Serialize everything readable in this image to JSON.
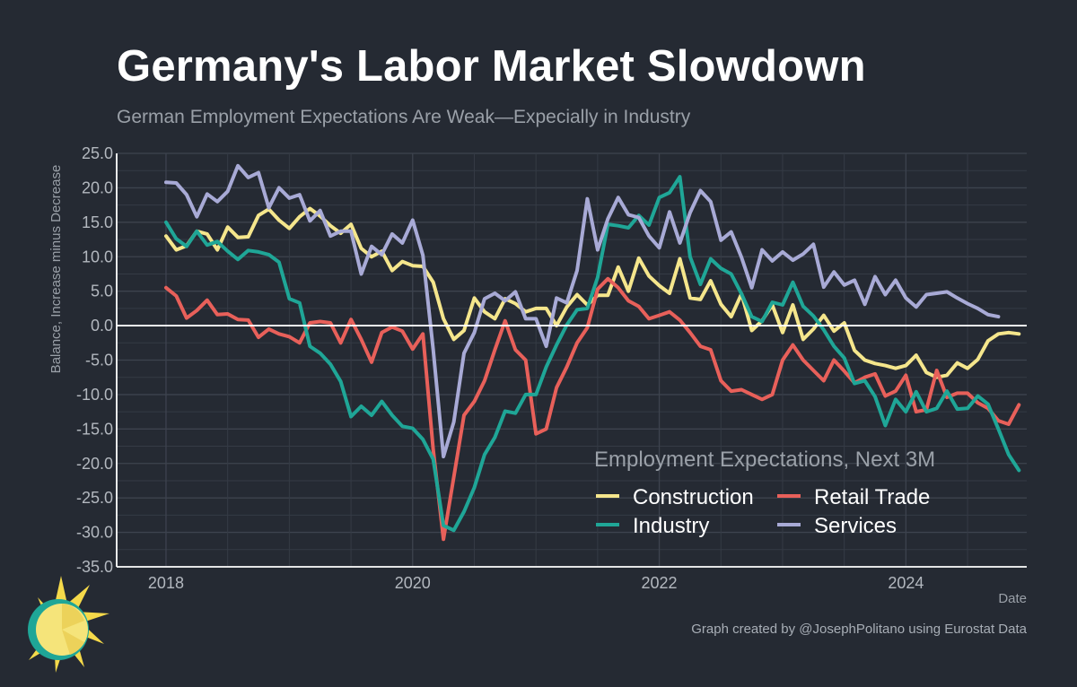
{
  "title": "Germany's Labor Market Slowdown",
  "subtitle": "German Employment Expectations Are Weak—Expecially in Industry",
  "credit": "Graph created by @JosephPolitano using Eurostat Data",
  "logo": "sun-logo-icon",
  "chart_data": {
    "type": "line",
    "title": "Germany's Labor Market Slowdown",
    "subtitle": "German Employment Expectations Are Weak—Expecially in Industry",
    "xlabel": "Date",
    "ylabel": "Balance, Increase minus Decrease",
    "xlim": [
      2017.6,
      2024.98
    ],
    "ylim": [
      -35,
      25
    ],
    "y_ticks": [
      25.0,
      20.0,
      15.0,
      10.0,
      5.0,
      0.0,
      -5.0,
      -10.0,
      -15.0,
      -20.0,
      -25.0,
      -30.0,
      -35.0
    ],
    "y_tick_labels": [
      "25.0",
      "20.0",
      "15.0",
      "10.0",
      "5.0",
      "0.0",
      "-5.0",
      "-10.0",
      "-15.0",
      "-20.0",
      "-25.0",
      "-30.0",
      "-35.0"
    ],
    "x_ticks": [
      2018,
      2020,
      2022,
      2024
    ],
    "x_tick_labels": [
      "2018",
      "2020",
      "2022",
      "2024"
    ],
    "zero_line": true,
    "grid": true,
    "legend": {
      "title": "Employment Expectations, Next 3M",
      "position": "bottom-right",
      "entries": [
        "Construction",
        "Retail Trade",
        "Industry",
        "Services"
      ]
    },
    "x_start": 2018.0,
    "x_step_months": 1,
    "series": [
      {
        "name": "Construction",
        "color": "#f5e68c",
        "values": [
          13.0,
          11.0,
          11.6,
          13.7,
          13.3,
          11.0,
          14.3,
          12.8,
          12.9,
          16.0,
          16.9,
          15.3,
          14.1,
          15.8,
          17.0,
          15.9,
          14.5,
          13.4,
          14.7,
          11.2,
          10.0,
          10.8,
          8.0,
          9.3,
          8.7,
          8.6,
          6.3,
          1.0,
          -2.0,
          -0.7,
          4.0,
          2.0,
          1.0,
          3.9,
          3.2,
          2.0,
          2.5,
          2.5,
          0.0,
          2.7,
          4.5,
          3.0,
          4.4,
          4.4,
          8.5,
          5.0,
          9.8,
          7.2,
          5.8,
          4.7,
          9.7,
          4.0,
          3.8,
          6.5,
          3.1,
          1.3,
          4.6,
          -0.7,
          0.7,
          3.0,
          -1.0,
          3.0,
          -2.0,
          -0.5,
          1.5,
          -0.8,
          0.4,
          -3.6,
          -5.0,
          -5.5,
          -5.8,
          -6.2,
          -5.8,
          -4.3,
          -6.8,
          -7.5,
          -7.2,
          -5.4,
          -6.2,
          -4.9,
          -2.2,
          -1.2,
          -1.0,
          -1.2
        ]
      },
      {
        "name": "Retail Trade",
        "color": "#e8605a",
        "values": [
          5.5,
          4.3,
          1.1,
          2.2,
          3.7,
          1.6,
          1.7,
          0.9,
          0.8,
          -1.7,
          -0.5,
          -1.2,
          -1.6,
          -2.5,
          0.4,
          0.6,
          0.4,
          -2.5,
          0.9,
          -2.0,
          -5.3,
          -1.0,
          -0.2,
          -0.8,
          -3.4,
          -1.2,
          -18.0,
          -31.0,
          -22.0,
          -13.0,
          -11.0,
          -8.0,
          -3.5,
          0.7,
          -3.5,
          -5.0,
          -15.7,
          -15.0,
          -9.0,
          -6.0,
          -2.5,
          -0.3,
          5.3,
          6.8,
          5.5,
          3.6,
          2.8,
          1.0,
          1.5,
          2.0,
          0.8,
          -1.0,
          -3.0,
          -3.5,
          -8.0,
          -9.5,
          -9.3,
          -10.0,
          -10.7,
          -10.0,
          -5.0,
          -2.8,
          -5.0,
          -6.5,
          -8.0,
          -5.0,
          -6.6,
          -8.3,
          -7.5,
          -7.0,
          -10.2,
          -9.5,
          -7.2,
          -12.5,
          -12.2,
          -6.5,
          -10.4,
          -9.8,
          -9.8,
          -11.2,
          -12.0,
          -13.8,
          -14.3,
          -11.5
        ]
      },
      {
        "name": "Industry",
        "color": "#1fa697",
        "values": [
          15.0,
          12.6,
          11.5,
          13.7,
          11.7,
          12.2,
          10.8,
          9.6,
          10.9,
          10.7,
          10.3,
          9.2,
          3.9,
          3.3,
          -3.0,
          -4.0,
          -5.6,
          -8.1,
          -13.2,
          -11.7,
          -13.0,
          -11.0,
          -13.0,
          -14.6,
          -14.9,
          -16.5,
          -19.4,
          -29.0,
          -29.7,
          -27.0,
          -23.5,
          -18.7,
          -16.2,
          -12.4,
          -12.7,
          -10.0,
          -10.0,
          -6.0,
          -2.8,
          0.1,
          2.3,
          2.5,
          7.0,
          14.7,
          14.5,
          14.2,
          16.0,
          14.6,
          18.6,
          19.3,
          21.6,
          10.0,
          6.0,
          9.7,
          8.3,
          7.5,
          4.6,
          1.3,
          0.6,
          3.4,
          3.0,
          6.3,
          2.8,
          1.4,
          -0.6,
          -3.0,
          -4.7,
          -8.4,
          -8.0,
          -10.3,
          -14.5,
          -10.7,
          -12.5,
          -9.6,
          -12.5,
          -12.0,
          -9.5,
          -12.1,
          -12.0,
          -10.2,
          -11.4,
          -15.0,
          -18.7,
          -21.0
        ]
      },
      {
        "name": "Services",
        "color": "#a8aad6",
        "values": [
          20.8,
          20.7,
          19.0,
          15.8,
          19.1,
          18.0,
          19.5,
          23.2,
          21.5,
          22.2,
          17.1,
          20.0,
          18.5,
          19.0,
          15.2,
          16.7,
          13.0,
          13.7,
          13.7,
          7.5,
          11.5,
          10.3,
          13.3,
          12.0,
          15.3,
          10.2,
          -3.5,
          -19.0,
          -14.0,
          -4.0,
          -1.0,
          3.9,
          4.7,
          3.6,
          4.9,
          1.0,
          1.0,
          -3.0,
          4.0,
          3.3,
          8.0,
          18.4,
          11.0,
          15.5,
          18.6,
          16.1,
          15.7,
          13.0,
          11.3,
          16.5,
          12.0,
          16.4,
          19.6,
          18.0,
          12.4,
          13.6,
          9.9,
          5.5,
          11.0,
          9.4,
          10.7,
          9.5,
          10.4,
          11.8,
          5.6,
          7.8,
          5.9,
          6.6,
          3.1,
          7.1,
          4.5,
          6.6,
          4.0,
          2.7,
          4.5,
          4.7,
          4.9,
          4.0,
          3.2,
          2.5,
          1.6,
          1.3
        ]
      }
    ]
  }
}
